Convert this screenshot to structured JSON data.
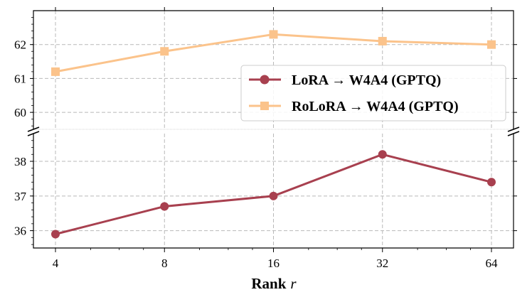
{
  "chart_data": {
    "type": "line",
    "xlabel_main": "Rank",
    "xlabel_var": "r",
    "categories": [
      "4",
      "8",
      "16",
      "32",
      "64"
    ],
    "x_scale": "log2",
    "broken_axis": true,
    "upper_ylim": [
      59.5,
      63.0
    ],
    "upper_yticks": [
      "60",
      "61",
      "62"
    ],
    "lower_ylim": [
      35.5,
      38.8
    ],
    "lower_yticks": [
      "36",
      "37",
      "38"
    ],
    "grid": true,
    "legend_position": "center-right of upper panel",
    "series": [
      {
        "name": "LoRA → W4A4 (GPTQ)",
        "marker": "circle",
        "color": "#a8404f",
        "panel": "lower",
        "values": [
          35.9,
          36.7,
          37.0,
          38.2,
          37.4
        ]
      },
      {
        "name": "RoLoRA → W4A4 (GPTQ)",
        "marker": "square",
        "color": "#fbc38b",
        "panel": "upper",
        "values": [
          61.2,
          61.8,
          62.3,
          62.1,
          62.0
        ]
      }
    ]
  }
}
